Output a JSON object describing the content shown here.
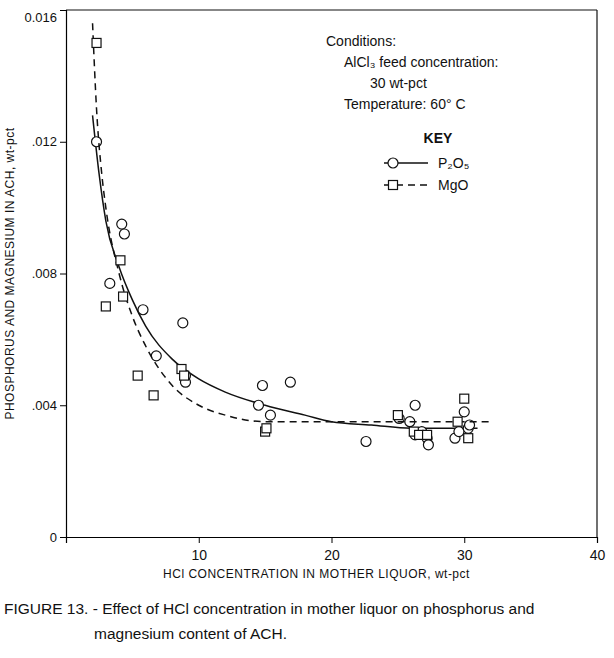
{
  "chart_data": {
    "type": "scatter",
    "title": "FIGURE 13. - Effect of HCl concentration in mother liquor on phosphorus and magnesium content of ACH.",
    "x_label": "HCl CONCENTRATION IN MOTHER LIQUOR, wt-pct",
    "y_label": "PHOSPHORUS AND MAGNESIUM IN ACH, wt-pct",
    "annotations": [
      "Conditions:",
      "AlCl₃ feed concentration:",
      "30 wt-pct",
      "Temperature: 60° C"
    ],
    "legend_title": "KEY",
    "legend": "upper right",
    "xlim": [
      0,
      40
    ],
    "xticks": [
      10,
      20,
      30,
      40
    ],
    "ylim": [
      0,
      0.016
    ],
    "yticks": [
      0,
      {
        "value": 0.004,
        "label": ".004"
      },
      {
        "value": 0.008,
        "label": ".008"
      },
      {
        "value": 0.012,
        "label": ".012"
      },
      {
        "value": 0.016,
        "label": "0.016"
      }
    ],
    "series": [
      {
        "name": "P₂O₅",
        "color": "#111111",
        "marker": "circle",
        "line_style": "solid",
        "x": [
          2.3,
          3.3,
          4.2,
          4.4,
          5.8,
          6.8,
          8.8,
          9.0,
          9.0,
          14.5,
          14.8,
          15.4,
          16.9,
          22.6,
          25.1,
          25.9,
          26.3,
          26.3,
          26.8,
          27.2,
          27.3,
          29.3,
          29.6,
          30.0,
          30.3,
          30.4
        ],
        "values": [
          0.012,
          0.0077,
          0.0095,
          0.0092,
          0.0069,
          0.0055,
          0.0065,
          0.0049,
          0.0047,
          0.004,
          0.0046,
          0.0037,
          0.0047,
          0.0029,
          0.0036,
          0.0035,
          0.004,
          0.0031,
          0.0032,
          0.003,
          0.0028,
          0.003,
          0.0032,
          0.0038,
          0.0033,
          0.0034
        ],
        "fit": {
          "x": [
            2,
            2.5,
            3,
            4,
            5,
            6,
            8,
            10,
            12,
            15,
            18,
            20,
            23,
            26,
            30,
            31
          ],
          "values": [
            0.0128,
            0.011,
            0.0096,
            0.0082,
            0.0072,
            0.0064,
            0.0054,
            0.0048,
            0.0044,
            0.004,
            0.0037,
            0.0035,
            0.0034,
            0.0033,
            0.0033,
            0.0033
          ]
        }
      },
      {
        "name": "MgO",
        "color": "#111111",
        "marker": "square",
        "line_style": "dashed",
        "x": [
          2.3,
          3.0,
          4.1,
          4.3,
          5.4,
          6.6,
          8.7,
          8.9,
          15.0,
          15.1,
          25.0,
          26.2,
          26.6,
          27.2,
          29.5,
          30.0,
          30.3
        ],
        "values": [
          0.015,
          0.007,
          0.0084,
          0.0073,
          0.0049,
          0.0043,
          0.0051,
          0.0049,
          0.0032,
          0.0033,
          0.0037,
          0.0032,
          0.0031,
          0.0031,
          0.0035,
          0.0042,
          0.003
        ],
        "fit": {
          "x": [
            2,
            2.3,
            2.7,
            3,
            4,
            5,
            6,
            8,
            10,
            12,
            15,
            20,
            25,
            30,
            32
          ],
          "values": [
            0.0156,
            0.013,
            0.011,
            0.01,
            0.008,
            0.0067,
            0.0058,
            0.0046,
            0.004,
            0.0037,
            0.0035,
            0.0035,
            0.0035,
            0.0035,
            0.0035
          ]
        }
      }
    ]
  }
}
